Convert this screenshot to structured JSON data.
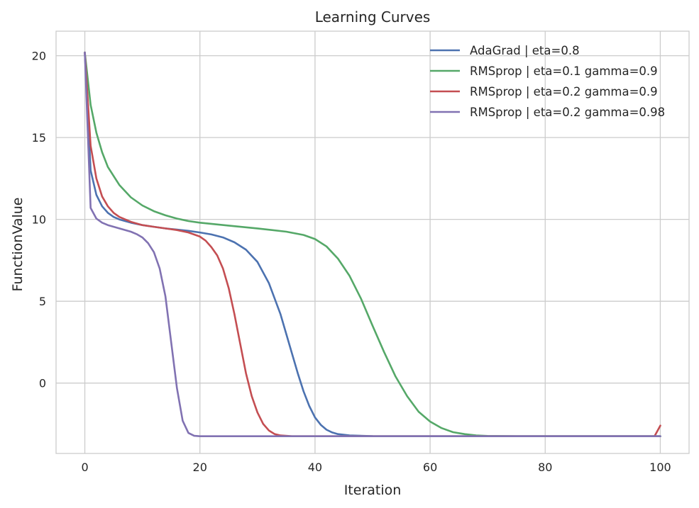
{
  "chart_data": {
    "type": "line",
    "title": "Learning Curves",
    "xlabel": "Iteration",
    "ylabel": "FunctionValue",
    "xlim": [
      -5,
      105
    ],
    "ylim": [
      -4.3,
      21.5
    ],
    "xticks": [
      0,
      20,
      40,
      60,
      80,
      100
    ],
    "yticks": [
      0,
      5,
      10,
      15,
      20
    ],
    "grid": true,
    "legend_position": "top-right",
    "series": [
      {
        "name": "AdaGrad | eta=0.8",
        "color": "#4c72b0",
        "points": [
          [
            0,
            20.2
          ],
          [
            1,
            13
          ],
          [
            2,
            11.5
          ],
          [
            3,
            10.8
          ],
          [
            4,
            10.4
          ],
          [
            5,
            10.15
          ],
          [
            6,
            10
          ],
          [
            8,
            9.8
          ],
          [
            10,
            9.65
          ],
          [
            12,
            9.55
          ],
          [
            14,
            9.45
          ],
          [
            16,
            9.38
          ],
          [
            18,
            9.3
          ],
          [
            20,
            9.2
          ],
          [
            22,
            9.08
          ],
          [
            24,
            8.9
          ],
          [
            26,
            8.6
          ],
          [
            28,
            8.15
          ],
          [
            30,
            7.4
          ],
          [
            32,
            6.1
          ],
          [
            34,
            4.2
          ],
          [
            35,
            3
          ],
          [
            36,
            1.8
          ],
          [
            37,
            0.6
          ],
          [
            38,
            -0.5
          ],
          [
            39,
            -1.4
          ],
          [
            40,
            -2.1
          ],
          [
            41,
            -2.55
          ],
          [
            42,
            -2.85
          ],
          [
            43,
            -3.02
          ],
          [
            44,
            -3.12
          ],
          [
            46,
            -3.2
          ],
          [
            50,
            -3.24
          ],
          [
            60,
            -3.25
          ],
          [
            80,
            -3.25
          ],
          [
            100,
            -3.25
          ]
        ]
      },
      {
        "name": "RMSprop | eta=0.1 gamma=0.9",
        "color": "#55a868",
        "points": [
          [
            0,
            20.2
          ],
          [
            1,
            17
          ],
          [
            2,
            15.3
          ],
          [
            3,
            14.1
          ],
          [
            4,
            13.2
          ],
          [
            6,
            12.1
          ],
          [
            8,
            11.35
          ],
          [
            10,
            10.85
          ],
          [
            12,
            10.5
          ],
          [
            14,
            10.25
          ],
          [
            16,
            10.05
          ],
          [
            18,
            9.9
          ],
          [
            20,
            9.8
          ],
          [
            25,
            9.62
          ],
          [
            30,
            9.45
          ],
          [
            35,
            9.25
          ],
          [
            38,
            9.05
          ],
          [
            40,
            8.8
          ],
          [
            42,
            8.35
          ],
          [
            44,
            7.6
          ],
          [
            46,
            6.55
          ],
          [
            48,
            5.15
          ],
          [
            50,
            3.5
          ],
          [
            52,
            1.9
          ],
          [
            54,
            0.4
          ],
          [
            56,
            -0.8
          ],
          [
            58,
            -1.75
          ],
          [
            60,
            -2.35
          ],
          [
            62,
            -2.75
          ],
          [
            64,
            -3
          ],
          [
            66,
            -3.12
          ],
          [
            68,
            -3.2
          ],
          [
            70,
            -3.23
          ],
          [
            75,
            -3.25
          ],
          [
            100,
            -3.25
          ]
        ]
      },
      {
        "name": "RMSprop | eta=0.2 gamma=0.9",
        "color": "#c44e52",
        "points": [
          [
            0,
            20.2
          ],
          [
            1,
            14.5
          ],
          [
            2,
            12.5
          ],
          [
            3,
            11.4
          ],
          [
            4,
            10.8
          ],
          [
            5,
            10.4
          ],
          [
            6,
            10.15
          ],
          [
            8,
            9.85
          ],
          [
            10,
            9.65
          ],
          [
            12,
            9.55
          ],
          [
            14,
            9.45
          ],
          [
            16,
            9.35
          ],
          [
            18,
            9.2
          ],
          [
            20,
            8.95
          ],
          [
            21,
            8.7
          ],
          [
            22,
            8.3
          ],
          [
            23,
            7.8
          ],
          [
            24,
            7
          ],
          [
            25,
            5.8
          ],
          [
            26,
            4.2
          ],
          [
            27,
            2.4
          ],
          [
            28,
            0.6
          ],
          [
            29,
            -0.8
          ],
          [
            30,
            -1.8
          ],
          [
            31,
            -2.5
          ],
          [
            32,
            -2.9
          ],
          [
            33,
            -3.12
          ],
          [
            34,
            -3.2
          ],
          [
            36,
            -3.25
          ],
          [
            50,
            -3.25
          ],
          [
            99,
            -3.25
          ],
          [
            100,
            -2.6
          ]
        ]
      },
      {
        "name": "RMSprop | eta=0.2 gamma=0.98",
        "color": "#8172b2",
        "points": [
          [
            0,
            20.2
          ],
          [
            1,
            10.7
          ],
          [
            2,
            10.05
          ],
          [
            3,
            9.8
          ],
          [
            4,
            9.65
          ],
          [
            6,
            9.45
          ],
          [
            8,
            9.25
          ],
          [
            9,
            9.1
          ],
          [
            10,
            8.9
          ],
          [
            11,
            8.55
          ],
          [
            12,
            8
          ],
          [
            13,
            7
          ],
          [
            14,
            5.3
          ],
          [
            15,
            2.5
          ],
          [
            16,
            -0.3
          ],
          [
            17,
            -2.3
          ],
          [
            18,
            -3.05
          ],
          [
            19,
            -3.22
          ],
          [
            20,
            -3.25
          ],
          [
            40,
            -3.25
          ],
          [
            60,
            -3.25
          ],
          [
            80,
            -3.25
          ],
          [
            100,
            -3.25
          ]
        ]
      }
    ]
  }
}
